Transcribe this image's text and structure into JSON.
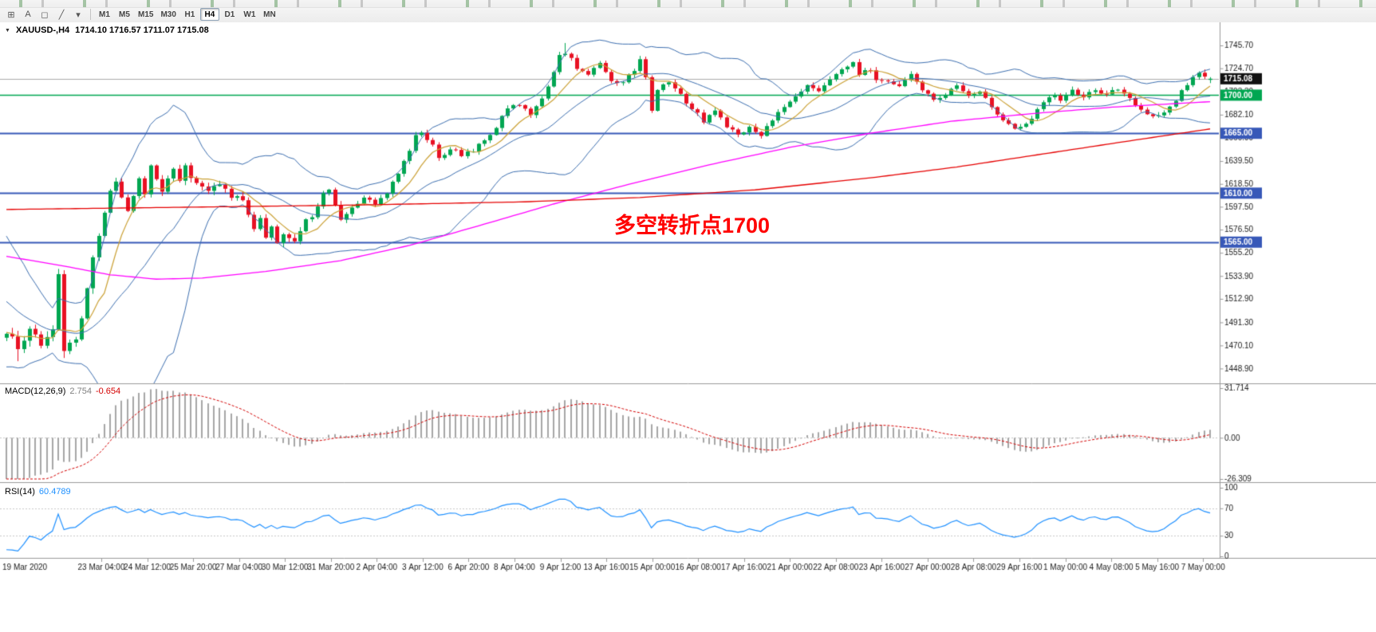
{
  "toolbar": {
    "icon_buttons": [
      {
        "name": "objects-icon",
        "glyph": "⊞"
      },
      {
        "name": "text-tool-icon",
        "glyph": "A"
      },
      {
        "name": "shapes-tool-icon",
        "glyph": "◻"
      },
      {
        "name": "trendline-tool-icon",
        "glyph": "╱"
      },
      {
        "name": "more-tools-icon",
        "glyph": "▾"
      }
    ],
    "timeframes": [
      "M1",
      "M5",
      "M15",
      "M30",
      "H1",
      "H4",
      "D1",
      "W1",
      "MN"
    ],
    "active_timeframe": "H4"
  },
  "chart": {
    "collapse_icon": "▼",
    "symbol_period": "XAUUSD-,H4",
    "ohlc_readout": "1714.10 1716.57 1711.07 1715.08",
    "annotation": {
      "text": "多空转折点1700",
      "color": "#FF0000"
    },
    "price_axis": {
      "top_price": 1764,
      "bottom_price": 1436,
      "ticks": [
        1745.7,
        1724.7,
        1703.3,
        1682.1,
        1660.9,
        1639.5,
        1618.5,
        1597.5,
        1576.5,
        1555.2,
        1533.9,
        1512.9,
        1491.3,
        1470.1,
        1448.9
      ],
      "markers": [
        {
          "name": "current-price-marker",
          "value": "1715.08",
          "price": 1715.08,
          "bg": "#111111",
          "fg": "#ffffff"
        },
        {
          "name": "level-1700-marker",
          "value": "1700.00",
          "price": 1700,
          "bg": "#00A651",
          "fg": "#ffffff"
        },
        {
          "name": "level-1665-marker",
          "value": "1665.00",
          "price": 1665,
          "bg": "#3758B8",
          "fg": "#ffffff"
        },
        {
          "name": "level-1610-marker",
          "value": "1610.00",
          "price": 1610,
          "bg": "#3758B8",
          "fg": "#ffffff"
        },
        {
          "name": "level-1565-marker",
          "value": "1565.00",
          "price": 1565,
          "bg": "#3758B8",
          "fg": "#ffffff"
        }
      ]
    },
    "hlines": [
      {
        "price": 1715.08,
        "color": "#AAAAAA",
        "width": 1
      },
      {
        "price": 1700,
        "color": "#00A651",
        "width": 1.6
      },
      {
        "price": 1665,
        "color": "#3758B8",
        "width": 2
      },
      {
        "price": 1610,
        "color": "#3758B8",
        "width": 2
      },
      {
        "price": 1565,
        "color": "#3758B8",
        "width": 2
      }
    ],
    "time_axis": [
      "19 Mar 2020",
      "23 Mar 04:00",
      "24 Mar 12:00",
      "25 Mar 20:00",
      "27 Mar 04:00",
      "30 Mar 12:00",
      "31 Mar 20:00",
      "2 Apr 04:00",
      "3 Apr 12:00",
      "6 Apr 20:00",
      "8 Apr 04:00",
      "9 Apr 12:00",
      "13 Apr 16:00",
      "15 Apr 00:00",
      "16 Apr 08:00",
      "17 Apr 16:00",
      "21 Apr 00:00",
      "22 Apr 08:00",
      "23 Apr 16:00",
      "27 Apr 00:00",
      "28 Apr 08:00",
      "29 Apr 16:00",
      "1 May 00:00",
      "4 May 08:00",
      "5 May 16:00",
      "7 May 00:00"
    ]
  },
  "indicators": {
    "macd": {
      "name": "MACD(12,26,9)",
      "value_main": "2.754",
      "value_signal": "-0.654",
      "ticks": [
        "31.714",
        "0.00",
        "-26.309"
      ],
      "max": 31.714,
      "min": -26.309,
      "fast": 12,
      "slow": 26,
      "signal": 9
    },
    "rsi": {
      "name": "RSI(14)",
      "value": "60.4789",
      "ticks": [
        "100",
        "70",
        "30",
        "0"
      ],
      "levels": [
        70,
        30
      ],
      "period": 14
    }
  },
  "chart_data": {
    "type": "candlestick",
    "symbol": "XAUUSD",
    "timeframe": "H4",
    "candle_count": 210,
    "last_candle": {
      "open": 1714.1,
      "high": 1716.57,
      "low": 1711.07,
      "close": 1715.08
    },
    "price_anchors": [
      [
        0,
        1482
      ],
      [
        2,
        1468
      ],
      [
        4,
        1486
      ],
      [
        6,
        1470
      ],
      [
        8,
        1488
      ],
      [
        9,
        1536
      ],
      [
        10,
        1468
      ],
      [
        12,
        1475
      ],
      [
        13,
        1498
      ],
      [
        14,
        1522
      ],
      [
        15,
        1548
      ],
      [
        16,
        1574
      ],
      [
        17,
        1596
      ],
      [
        18,
        1610
      ],
      [
        19,
        1622
      ],
      [
        20,
        1605
      ],
      [
        21,
        1596
      ],
      [
        22,
        1608
      ],
      [
        23,
        1622
      ],
      [
        24,
        1610
      ],
      [
        25,
        1634
      ],
      [
        26,
        1620
      ],
      [
        27,
        1612
      ],
      [
        28,
        1624
      ],
      [
        29,
        1634
      ],
      [
        30,
        1620
      ],
      [
        31,
        1636
      ],
      [
        32,
        1626
      ],
      [
        33,
        1618
      ],
      [
        35,
        1612
      ],
      [
        37,
        1618
      ],
      [
        39,
        1608
      ],
      [
        41,
        1602
      ],
      [
        42,
        1592
      ],
      [
        43,
        1578
      ],
      [
        44,
        1586
      ],
      [
        45,
        1570
      ],
      [
        46,
        1578
      ],
      [
        47,
        1565
      ],
      [
        48,
        1574
      ],
      [
        49,
        1570
      ],
      [
        50,
        1564
      ],
      [
        51,
        1577
      ],
      [
        53,
        1590
      ],
      [
        55,
        1608
      ],
      [
        56,
        1614
      ],
      [
        57,
        1600
      ],
      [
        58,
        1584
      ],
      [
        60,
        1598
      ],
      [
        62,
        1606
      ],
      [
        64,
        1600
      ],
      [
        66,
        1610
      ],
      [
        68,
        1628
      ],
      [
        70,
        1650
      ],
      [
        71,
        1662
      ],
      [
        72,
        1664
      ],
      [
        74,
        1654
      ],
      [
        75,
        1642
      ],
      [
        77,
        1652
      ],
      [
        79,
        1646
      ],
      [
        81,
        1650
      ],
      [
        83,
        1658
      ],
      [
        85,
        1670
      ],
      [
        87,
        1688
      ],
      [
        89,
        1690
      ],
      [
        91,
        1682
      ],
      [
        93,
        1696
      ],
      [
        95,
        1722
      ],
      [
        96,
        1736
      ],
      [
        97,
        1740
      ],
      [
        99,
        1726
      ],
      [
        101,
        1718
      ],
      [
        103,
        1728
      ],
      [
        105,
        1714
      ],
      [
        107,
        1710
      ],
      [
        109,
        1724
      ],
      [
        110,
        1732
      ],
      [
        111,
        1716
      ],
      [
        112,
        1686
      ],
      [
        113,
        1704
      ],
      [
        115,
        1712
      ],
      [
        117,
        1700
      ],
      [
        119,
        1688
      ],
      [
        121,
        1676
      ],
      [
        123,
        1686
      ],
      [
        125,
        1672
      ],
      [
        127,
        1662
      ],
      [
        129,
        1670
      ],
      [
        131,
        1664
      ],
      [
        133,
        1678
      ],
      [
        135,
        1688
      ],
      [
        137,
        1698
      ],
      [
        139,
        1708
      ],
      [
        141,
        1702
      ],
      [
        143,
        1714
      ],
      [
        145,
        1722
      ],
      [
        147,
        1730
      ],
      [
        148,
        1718
      ],
      [
        150,
        1724
      ],
      [
        151,
        1712
      ],
      [
        153,
        1714
      ],
      [
        155,
        1708
      ],
      [
        157,
        1718
      ],
      [
        159,
        1706
      ],
      [
        161,
        1694
      ],
      [
        163,
        1700
      ],
      [
        165,
        1708
      ],
      [
        167,
        1698
      ],
      [
        169,
        1704
      ],
      [
        171,
        1690
      ],
      [
        173,
        1676
      ],
      [
        175,
        1668
      ],
      [
        177,
        1672
      ],
      [
        179,
        1688
      ],
      [
        181,
        1700
      ],
      [
        183,
        1696
      ],
      [
        185,
        1704
      ],
      [
        187,
        1698
      ],
      [
        189,
        1706
      ],
      [
        191,
        1700
      ],
      [
        193,
        1706
      ],
      [
        195,
        1696
      ],
      [
        197,
        1688
      ],
      [
        199,
        1680
      ],
      [
        201,
        1684
      ],
      [
        203,
        1696
      ],
      [
        205,
        1710
      ],
      [
        207,
        1720
      ],
      [
        208,
        1716
      ],
      [
        209,
        1715.08
      ]
    ],
    "preroll_anchors": [
      [
        -40,
        1660
      ],
      [
        -32,
        1622
      ],
      [
        -26,
        1592
      ],
      [
        -20,
        1578
      ],
      [
        -15,
        1540
      ],
      [
        -10,
        1502
      ],
      [
        -5,
        1478
      ]
    ],
    "overlays": {
      "bollinger": {
        "period": 20,
        "deviation": 2,
        "color": "#3D6FB0"
      },
      "ma_fast": {
        "period": 8,
        "color": "#CBA135"
      },
      "ma_slow_color": "#FF00FF",
      "ma_slow_anchors": [
        [
          0,
          1552
        ],
        [
          10,
          1543
        ],
        [
          18,
          1535
        ],
        [
          26,
          1531
        ],
        [
          34,
          1532
        ],
        [
          45,
          1538
        ],
        [
          58,
          1548
        ],
        [
          70,
          1562
        ],
        [
          82,
          1580
        ],
        [
          95,
          1600
        ],
        [
          108,
          1618
        ],
        [
          122,
          1636
        ],
        [
          136,
          1652
        ],
        [
          150,
          1665
        ],
        [
          164,
          1676
        ],
        [
          178,
          1683
        ],
        [
          192,
          1689
        ],
        [
          209,
          1694
        ]
      ],
      "ma_trend_color": "#E60000",
      "ma_trend_anchors": [
        [
          0,
          1595
        ],
        [
          30,
          1597
        ],
        [
          60,
          1599
        ],
        [
          90,
          1602
        ],
        [
          110,
          1606
        ],
        [
          130,
          1613
        ],
        [
          150,
          1624
        ],
        [
          165,
          1634
        ],
        [
          180,
          1646
        ],
        [
          195,
          1658
        ],
        [
          209,
          1669
        ]
      ]
    }
  },
  "colors": {
    "up": "#00A651",
    "down": "#E81123",
    "macd_hist": "#A6A6A6",
    "macd_signal": "#D40000",
    "rsi": "#1E90FF",
    "grid": "#C8C8C8",
    "axis": "#9A9A9A",
    "text": "#1A1A1A"
  }
}
